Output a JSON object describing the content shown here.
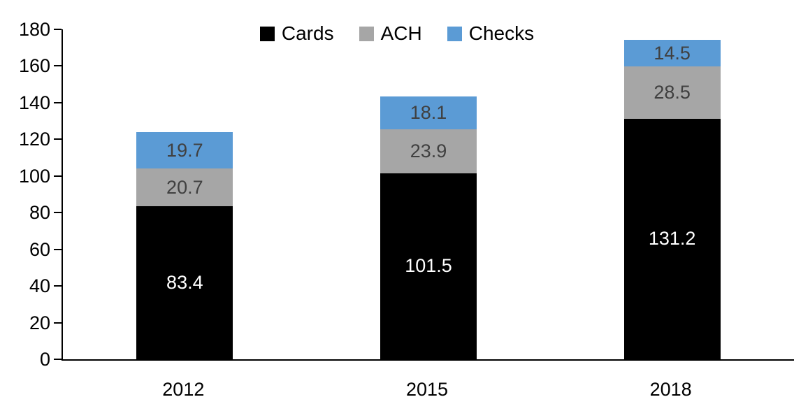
{
  "chart_data": {
    "type": "bar",
    "stacked": true,
    "categories": [
      "2012",
      "2015",
      "2018"
    ],
    "series": [
      {
        "name": "Cards",
        "color": "#000000",
        "label_color": "#ffffff",
        "values": [
          83.4,
          101.5,
          131.2
        ]
      },
      {
        "name": "ACH",
        "color": "#a6a6a6",
        "label_color": "#404040",
        "values": [
          20.7,
          23.9,
          28.5
        ]
      },
      {
        "name": "Checks",
        "color": "#5b9bd5",
        "label_color": "#404040",
        "values": [
          19.7,
          18.1,
          14.5
        ]
      }
    ],
    "totals": [
      123.8,
      143.5,
      174.2
    ],
    "title": "",
    "xlabel": "",
    "ylabel": "",
    "ylim": [
      0,
      180
    ],
    "ytick_step": 20,
    "ytick_labels": [
      "0",
      "20",
      "40",
      "60",
      "80",
      "100",
      "120",
      "140",
      "160",
      "180"
    ],
    "grid": false,
    "legend_position": "top-center",
    "axis_color": "#000000",
    "value_label_decimals": 1
  }
}
